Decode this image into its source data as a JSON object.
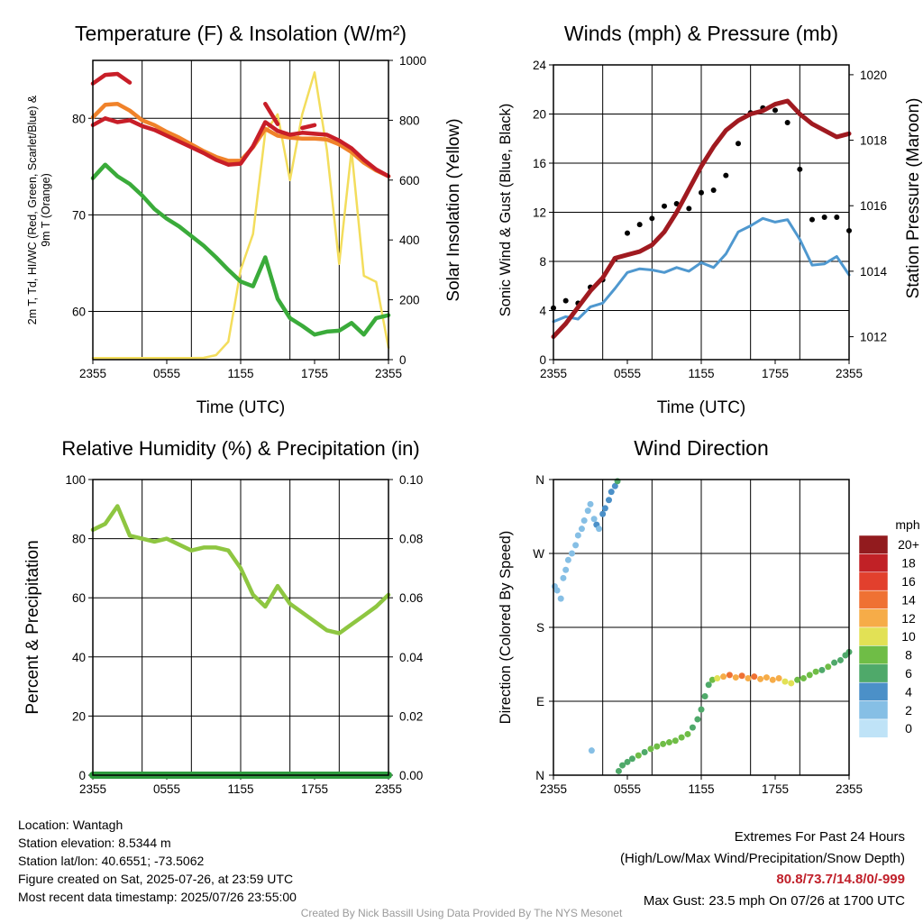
{
  "colors": {
    "temperature": "#c81e28",
    "dewpoint": "#3aab3a",
    "nine_m_temperature": "#f0822a",
    "solar": "#f3dd5c",
    "wind": "#4f98cf",
    "gust": "#000000",
    "pressure": "#a01a20",
    "humidity": "#8ec641",
    "precipitation": "#2e9b3e"
  },
  "chart_data": [
    {
      "type": "line",
      "title": "Temperature (F) & Insolation (W/m²)",
      "xlabel": "Time (UTC)",
      "ylabel_left": "2m T, Td, HI/WC (Red, Green, Scarlet/Blue) & 9m T (Orange)",
      "ylabel_right": "Solar Insolation (Yellow)",
      "x_ticks": [
        "2355",
        "0555",
        "1155",
        "1755",
        "2355"
      ],
      "ylim_left": [
        55,
        86
      ],
      "y_ticks_left": [
        60,
        70,
        80
      ],
      "ylim_right": [
        0,
        1000
      ],
      "y_ticks_right": [
        0,
        200,
        400,
        600,
        800,
        1000
      ],
      "x_hours": [
        0,
        1,
        2,
        3,
        4,
        5,
        6,
        7,
        8,
        9,
        10,
        11,
        12,
        13,
        14,
        15,
        16,
        17,
        18,
        19,
        20,
        21,
        22,
        23,
        24
      ],
      "series": [
        {
          "name": "2m T",
          "axis": "left",
          "values": [
            79.3,
            80.0,
            79.6,
            79.8,
            79.2,
            78.8,
            78.2,
            77.6,
            77.0,
            76.4,
            75.7,
            75.2,
            75.3,
            77.1,
            79.6,
            78.7,
            78.3,
            78.5,
            78.4,
            78.3,
            77.7,
            76.9,
            75.7,
            74.7,
            74.0
          ]
        },
        {
          "name": "9m T",
          "axis": "left",
          "values": [
            80.1,
            81.4,
            81.5,
            80.8,
            79.8,
            79.3,
            78.6,
            78.0,
            77.3,
            76.6,
            76.0,
            75.6,
            75.6,
            77.0,
            78.9,
            78.2,
            78.0,
            77.9,
            77.9,
            77.8,
            77.3,
            76.5,
            75.4,
            74.6,
            74.0
          ]
        },
        {
          "name": "HI/WC",
          "axis": "left",
          "values": [
            83.6,
            84.5,
            84.6,
            83.7,
            null,
            null,
            null,
            null,
            null,
            null,
            null,
            null,
            null,
            null,
            81.5,
            79.4,
            null,
            79.0,
            79.3,
            null,
            null,
            null,
            null,
            null,
            null
          ]
        },
        {
          "name": "Td",
          "axis": "left",
          "values": [
            73.8,
            75.2,
            74.0,
            73.2,
            72.0,
            70.6,
            69.6,
            68.8,
            67.8,
            66.8,
            65.6,
            64.3,
            63.1,
            62.6,
            65.6,
            61.3,
            59.3,
            58.5,
            57.6,
            57.9,
            58.0,
            58.8,
            57.6,
            59.3,
            59.6
          ]
        },
        {
          "name": "Solar Insolation",
          "axis": "right",
          "values": [
            5,
            5,
            5,
            5,
            5,
            5,
            5,
            5,
            5,
            6,
            15,
            60,
            300,
            420,
            760,
            820,
            600,
            820,
            960,
            700,
            320,
            700,
            280,
            260,
            40
          ]
        }
      ]
    },
    {
      "type": "line",
      "title": "Winds (mph) & Pressure (mb)",
      "xlabel": "Time (UTC)",
      "ylabel_left": "Sonic Wind & Gust (Blue, Black)",
      "ylabel_right": "Station Pressure (Maroon)",
      "x_ticks": [
        "2355",
        "0555",
        "1155",
        "1755",
        "2355"
      ],
      "ylim_left": [
        0,
        24
      ],
      "y_ticks_left": [
        0,
        4,
        8,
        12,
        16,
        20,
        24
      ],
      "ylim_right": [
        1011.3,
        1020.3
      ],
      "y_ticks_right": [
        1012,
        1014,
        1016,
        1018,
        1020
      ],
      "x_hours": [
        0,
        1,
        2,
        3,
        4,
        5,
        6,
        7,
        8,
        9,
        10,
        11,
        12,
        13,
        14,
        15,
        16,
        17,
        18,
        19,
        20,
        21,
        22,
        23,
        24
      ],
      "series": [
        {
          "name": "Sonic Wind",
          "axis": "left",
          "values": [
            3.1,
            3.5,
            3.3,
            4.3,
            4.6,
            5.8,
            7.1,
            7.4,
            7.3,
            7.1,
            7.5,
            7.2,
            7.9,
            7.5,
            8.6,
            10.4,
            10.9,
            11.5,
            11.2,
            11.4,
            9.8,
            7.7,
            7.8,
            8.4,
            6.9
          ]
        },
        {
          "name": "Gust",
          "axis": "left",
          "values": [
            4.2,
            4.8,
            4.6,
            5.9,
            6.5,
            8.2,
            10.3,
            11.0,
            11.5,
            12.5,
            12.7,
            12.3,
            13.6,
            13.8,
            15.0,
            17.6,
            20.1,
            20.5,
            20.3,
            19.3,
            15.5,
            11.4,
            11.6,
            11.6,
            10.5
          ]
        },
        {
          "name": "Station Pressure",
          "axis": "right",
          "values": [
            1012.0,
            1012.4,
            1012.9,
            1013.4,
            1013.8,
            1014.4,
            1014.5,
            1014.6,
            1014.8,
            1015.2,
            1015.8,
            1016.5,
            1017.2,
            1017.8,
            1018.3,
            1018.6,
            1018.8,
            1018.9,
            1019.1,
            1019.2,
            1018.8,
            1018.5,
            1018.3,
            1018.1,
            1018.2
          ]
        }
      ]
    },
    {
      "type": "line",
      "title": "Relative Humidity (%) & Precipitation (in)",
      "xlabel": "",
      "ylabel_left": "Percent & Precipitation",
      "ylabel_right": "",
      "x_ticks": [
        "2355",
        "0555",
        "1155",
        "1755",
        "2355"
      ],
      "ylim_left": [
        0,
        100
      ],
      "y_ticks_left": [
        0,
        20,
        40,
        60,
        80,
        100
      ],
      "ylim_right": [
        0,
        0.1
      ],
      "y_ticks_right": [
        "0.00",
        "0.02",
        "0.04",
        "0.06",
        "0.08",
        "0.10"
      ],
      "x_hours": [
        0,
        1,
        2,
        3,
        4,
        5,
        6,
        7,
        8,
        9,
        10,
        11,
        12,
        13,
        14,
        15,
        16,
        17,
        18,
        19,
        20,
        21,
        22,
        23,
        24
      ],
      "series": [
        {
          "name": "Relative Humidity",
          "axis": "left",
          "values": [
            83,
            85,
            91,
            81,
            80,
            79,
            80,
            78,
            76,
            77,
            77,
            76,
            70,
            61,
            57,
            64,
            58,
            55,
            52,
            49,
            48,
            51,
            54,
            57,
            61
          ]
        },
        {
          "name": "Precipitation",
          "axis": "right",
          "values": [
            0,
            0,
            0,
            0,
            0,
            0,
            0,
            0,
            0,
            0,
            0,
            0,
            0,
            0,
            0,
            0,
            0,
            0,
            0,
            0,
            0,
            0,
            0,
            0,
            0
          ]
        }
      ]
    },
    {
      "type": "scatter",
      "title": "Wind Direction",
      "xlabel": "",
      "ylabel_left": "Direction (Colored By Speed)",
      "x_ticks": [
        "2355",
        "0555",
        "1155",
        "1755",
        "2355"
      ],
      "y_ticks_left": [
        "N",
        "E",
        "S",
        "W",
        "N"
      ],
      "ylim_left": [
        0,
        360
      ],
      "legend": {
        "title": "mph",
        "labels": [
          "0",
          "2",
          "4",
          "6",
          "8",
          "10",
          "12",
          "14",
          "16",
          "18",
          "20+"
        ],
        "colors": [
          "#bfe3f7",
          "#86bfe5",
          "#4b90c8",
          "#4fa96a",
          "#6fbd46",
          "#e2e155",
          "#f6ac48",
          "#ef7133",
          "#e2402d",
          "#c12126",
          "#921b1e"
        ],
        "placement": "right"
      },
      "points": [
        {
          "x": 0.1,
          "y": 230,
          "s": 3
        },
        {
          "x": 0.3,
          "y": 225,
          "s": 3
        },
        {
          "x": 0.6,
          "y": 215,
          "s": 3
        },
        {
          "x": 0.8,
          "y": 240,
          "s": 2
        },
        {
          "x": 1.0,
          "y": 250,
          "s": 2
        },
        {
          "x": 1.2,
          "y": 262,
          "s": 2
        },
        {
          "x": 1.5,
          "y": 270,
          "s": 2
        },
        {
          "x": 1.8,
          "y": 280,
          "s": 3
        },
        {
          "x": 2.0,
          "y": 292,
          "s": 2
        },
        {
          "x": 2.3,
          "y": 300,
          "s": 2
        },
        {
          "x": 2.5,
          "y": 310,
          "s": 3
        },
        {
          "x": 2.8,
          "y": 322,
          "s": 2
        },
        {
          "x": 3.0,
          "y": 330,
          "s": 3
        },
        {
          "x": 3.3,
          "y": 312,
          "s": 3
        },
        {
          "x": 3.5,
          "y": 305,
          "s": 4
        },
        {
          "x": 3.7,
          "y": 300,
          "s": 3
        },
        {
          "x": 4.0,
          "y": 318,
          "s": 4
        },
        {
          "x": 4.2,
          "y": 325,
          "s": 4
        },
        {
          "x": 4.5,
          "y": 335,
          "s": 4
        },
        {
          "x": 4.7,
          "y": 345,
          "s": 5
        },
        {
          "x": 5.0,
          "y": 352,
          "s": 5
        },
        {
          "x": 5.2,
          "y": 358,
          "s": 6
        },
        {
          "x": 3.1,
          "y": 30,
          "s": 3
        },
        {
          "x": 5.3,
          "y": 5,
          "s": 6
        },
        {
          "x": 5.6,
          "y": 12,
          "s": 6
        },
        {
          "x": 6.0,
          "y": 16,
          "s": 7
        },
        {
          "x": 6.4,
          "y": 20,
          "s": 7
        },
        {
          "x": 6.9,
          "y": 24,
          "s": 8
        },
        {
          "x": 7.4,
          "y": 28,
          "s": 7
        },
        {
          "x": 7.9,
          "y": 32,
          "s": 8
        },
        {
          "x": 8.4,
          "y": 35,
          "s": 8
        },
        {
          "x": 8.9,
          "y": 38,
          "s": 9
        },
        {
          "x": 9.4,
          "y": 40,
          "s": 8
        },
        {
          "x": 9.9,
          "y": 42,
          "s": 8
        },
        {
          "x": 10.4,
          "y": 46,
          "s": 9
        },
        {
          "x": 10.9,
          "y": 50,
          "s": 8
        },
        {
          "x": 11.3,
          "y": 58,
          "s": 7
        },
        {
          "x": 11.7,
          "y": 68,
          "s": 7
        },
        {
          "x": 12.0,
          "y": 80,
          "s": 6
        },
        {
          "x": 12.3,
          "y": 96,
          "s": 6
        },
        {
          "x": 12.6,
          "y": 110,
          "s": 7
        },
        {
          "x": 12.9,
          "y": 116,
          "s": 9
        },
        {
          "x": 13.3,
          "y": 118,
          "s": 11
        },
        {
          "x": 13.8,
          "y": 120,
          "s": 13
        },
        {
          "x": 14.3,
          "y": 122,
          "s": 14
        },
        {
          "x": 14.8,
          "y": 119,
          "s": 13
        },
        {
          "x": 15.3,
          "y": 121,
          "s": 14
        },
        {
          "x": 15.8,
          "y": 118,
          "s": 13
        },
        {
          "x": 16.3,
          "y": 120,
          "s": 14
        },
        {
          "x": 16.8,
          "y": 117,
          "s": 13
        },
        {
          "x": 17.3,
          "y": 119,
          "s": 12
        },
        {
          "x": 17.8,
          "y": 116,
          "s": 13
        },
        {
          "x": 18.3,
          "y": 118,
          "s": 12
        },
        {
          "x": 18.8,
          "y": 114,
          "s": 11
        },
        {
          "x": 19.3,
          "y": 112,
          "s": 10
        },
        {
          "x": 19.8,
          "y": 116,
          "s": 9
        },
        {
          "x": 20.3,
          "y": 118,
          "s": 9
        },
        {
          "x": 20.8,
          "y": 122,
          "s": 8
        },
        {
          "x": 21.3,
          "y": 126,
          "s": 8
        },
        {
          "x": 21.8,
          "y": 128,
          "s": 7
        },
        {
          "x": 22.3,
          "y": 132,
          "s": 8
        },
        {
          "x": 22.8,
          "y": 137,
          "s": 7
        },
        {
          "x": 23.3,
          "y": 140,
          "s": 7
        },
        {
          "x": 23.7,
          "y": 146,
          "s": 7
        },
        {
          "x": 24.0,
          "y": 150,
          "s": 6
        }
      ]
    }
  ],
  "footer": {
    "location": "Location: Wantagh",
    "elevation": "Station elevation: 8.5344 m",
    "latlon": "Station lat/lon: 40.6551; -73.5062",
    "created": "Figure created on Sat, 2025-07-26, at 23:59 UTC",
    "recent": "Most recent data timestamp: 2025/07/26 23:55:00",
    "extremes_title": "Extremes For Past 24 Hours",
    "extremes_desc": "(High/Low/Max Wind/Precipitation/Snow Depth)",
    "extremes_values": "80.8/73.7/14.8/0/-999",
    "max_gust": "Max Gust: 23.5 mph On 07/26 at 1700 UTC",
    "credit": "Created By Nick Bassill Using Data Provided By The NYS Mesonet"
  }
}
